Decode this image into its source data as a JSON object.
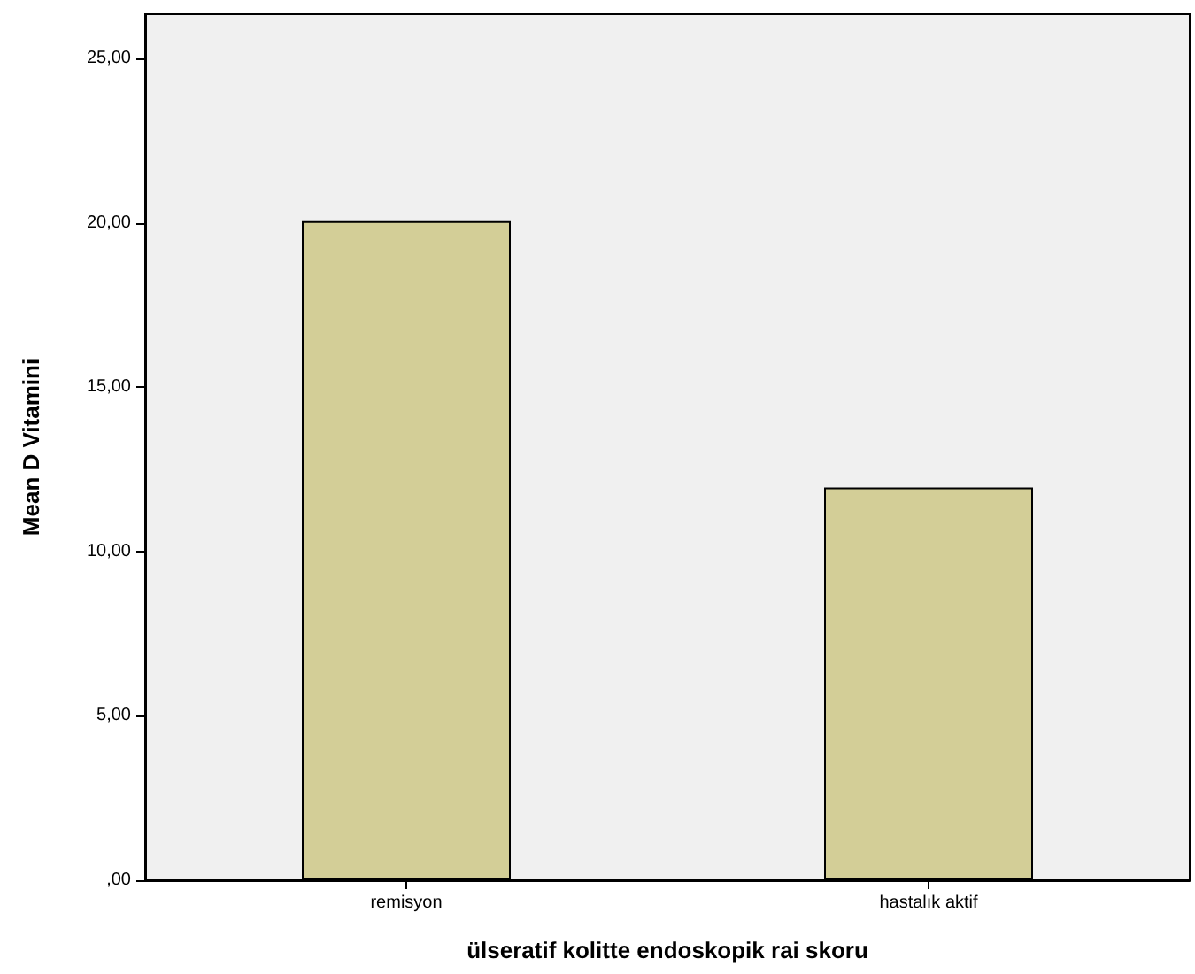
{
  "chart_data": {
    "type": "bar",
    "xlabel": "ülseratif kolitte endoskopik rai skoru",
    "ylabel": "Mean D Vitamini",
    "categories": [
      "remisyon",
      "hastalık aktif"
    ],
    "values": [
      20.05,
      11.95
    ],
    "color": "#d3ce97",
    "ylim": [
      0,
      26.35
    ],
    "yticks": [
      {
        "value": 0,
        "label": ",00"
      },
      {
        "value": 5,
        "label": "5,00"
      },
      {
        "value": 10,
        "label": "10,00"
      },
      {
        "value": 15,
        "label": "15,00"
      },
      {
        "value": 20,
        "label": "20,00"
      },
      {
        "value": 25,
        "label": "25,00"
      }
    ],
    "grid": false
  }
}
